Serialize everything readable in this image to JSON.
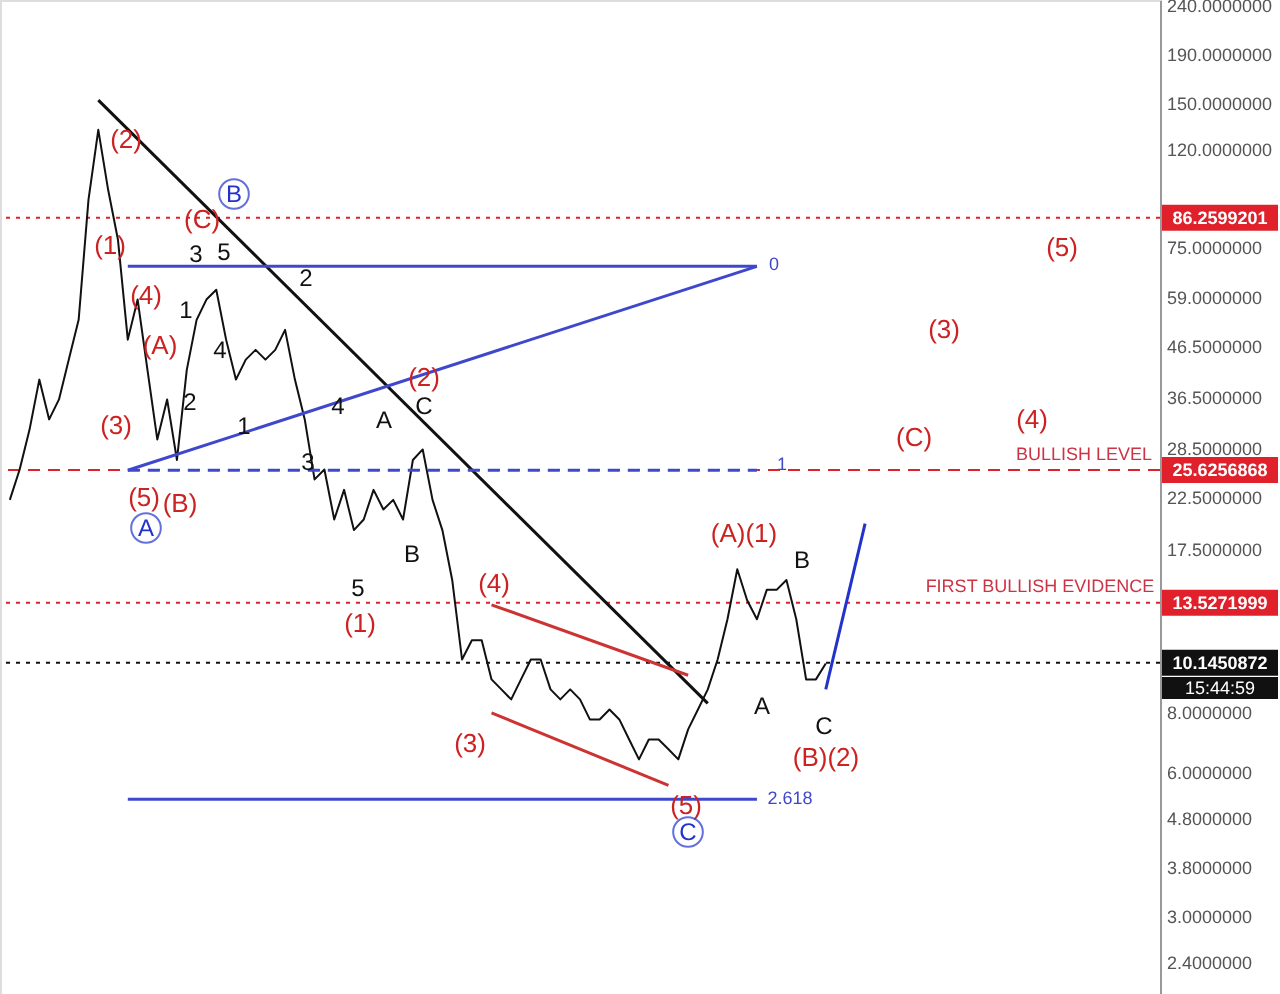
{
  "chart_data": {
    "type": "line",
    "categories": [
      null,
      null,
      null,
      null,
      null,
      null,
      null,
      null,
      null,
      null,
      null,
      null,
      null,
      null,
      null,
      null,
      null,
      null,
      null,
      null,
      null,
      null,
      null,
      null,
      null,
      null,
      null,
      null,
      null,
      null,
      null,
      null,
      null,
      null,
      null,
      null,
      null,
      null,
      null,
      null,
      null,
      null,
      null,
      null,
      null,
      null,
      null,
      null,
      null,
      null,
      null,
      null,
      null,
      null,
      null,
      null,
      null,
      null,
      null,
      null,
      null,
      null,
      null,
      null,
      null,
      null,
      null,
      null,
      null,
      null,
      null,
      null,
      null,
      null,
      null,
      null,
      null,
      null,
      null,
      null,
      null,
      null,
      null,
      null,
      null,
      null,
      null,
      null,
      null,
      null,
      null,
      null,
      null,
      null,
      null,
      null,
      null,
      null,
      null,
      null,
      null,
      null,
      null,
      null,
      null,
      null,
      null,
      null,
      null,
      null,
      null,
      null,
      null,
      null,
      null,
      null,
      null
    ],
    "series": [
      {
        "color": "#111111",
        "values": [
          22.2,
          25.7,
          31.1,
          39.6,
          32.7,
          36.0,
          43.6,
          52.8,
          94.0,
          131.7,
          98.7,
          77.6,
          48.0,
          58.2,
          41.5,
          29.7,
          36.0,
          26.9,
          41.5,
          52.8,
          58.2,
          61.0,
          48.0,
          39.6,
          43.6,
          45.7,
          43.6,
          45.7,
          50.3,
          39.6,
          32.7,
          24.5,
          25.7,
          20.2,
          23.3,
          19.2,
          20.2,
          23.3,
          21.2,
          22.2,
          20.2,
          26.9,
          28.3,
          22.2,
          19.2,
          15.1,
          10.3,
          11.3,
          11.3,
          9.36,
          8.92,
          8.5,
          9.36,
          10.3,
          10.3,
          8.92,
          8.5,
          8.92,
          8.5,
          7.72,
          7.72,
          8.1,
          7.72,
          7.01,
          6.37,
          7.01,
          7.01,
          6.69,
          6.37,
          7.36,
          8.1,
          8.92,
          10.3,
          12.5,
          15.9,
          13.7,
          12.5,
          14.4,
          14.4,
          15.1,
          12.5,
          9.36,
          9.36,
          10.1,
          null,
          null,
          null,
          null,
          null,
          null,
          null,
          null,
          null,
          null,
          null,
          null,
          null,
          null,
          null,
          null,
          null,
          null,
          null,
          null,
          null,
          null,
          null,
          null,
          null,
          null,
          null,
          null,
          null,
          null,
          null,
          null,
          null
        ]
      },
      {
        "color": "#111111",
        "values": [
          null,
          null,
          null,
          null,
          null,
          null,
          null,
          null,
          null,
          152,
          null,
          null,
          null,
          null,
          null,
          null,
          null,
          null,
          null,
          null,
          null,
          null,
          null,
          null,
          null,
          null,
          null,
          null,
          null,
          null,
          null,
          null,
          null,
          null,
          null,
          null,
          null,
          null,
          null,
          null,
          null,
          null,
          null,
          null,
          null,
          null,
          null,
          null,
          null,
          null,
          null,
          null,
          null,
          null,
          null,
          null,
          null,
          null,
          null,
          null,
          null,
          null,
          null,
          null,
          null,
          null,
          null,
          null,
          null,
          null,
          null,
          8.34,
          null,
          null,
          null,
          null,
          null,
          null,
          null,
          null,
          null,
          null,
          null,
          null,
          null,
          null,
          null,
          null,
          null,
          null,
          null,
          null,
          null,
          null,
          null,
          null,
          null,
          null,
          null,
          null,
          null,
          null,
          null,
          null,
          null,
          null,
          null,
          null,
          null,
          null,
          null,
          null,
          null,
          null,
          null,
          null,
          null
        ]
      },
      {
        "color": "#3f48cc",
        "values": [
          null,
          null,
          null,
          null,
          null,
          null,
          null,
          null,
          null,
          null,
          null,
          null,
          68.3,
          null,
          null,
          null,
          null,
          null,
          null,
          null,
          null,
          null,
          null,
          null,
          null,
          null,
          null,
          null,
          null,
          null,
          null,
          null,
          null,
          null,
          null,
          null,
          null,
          null,
          null,
          null,
          null,
          null,
          null,
          null,
          null,
          null,
          null,
          null,
          null,
          null,
          null,
          null,
          null,
          null,
          null,
          null,
          null,
          null,
          null,
          null,
          null,
          null,
          null,
          null,
          null,
          null,
          null,
          null,
          null,
          null,
          null,
          null,
          null,
          null,
          null,
          null,
          68.3,
          null,
          null,
          null,
          null,
          null,
          null,
          null,
          null,
          null,
          null,
          null,
          null,
          null,
          null,
          null,
          null,
          null,
          null,
          null,
          null,
          null,
          null,
          null,
          null,
          null,
          null,
          null,
          null,
          null,
          null,
          null,
          null,
          null,
          null,
          null,
          null,
          null,
          null,
          null,
          null
        ]
      },
      {
        "color": "#3f48cc",
        "values": [
          null,
          null,
          null,
          null,
          null,
          null,
          null,
          null,
          null,
          null,
          null,
          null,
          25.6,
          null,
          null,
          null,
          null,
          null,
          null,
          null,
          null,
          null,
          null,
          null,
          null,
          null,
          null,
          null,
          null,
          null,
          null,
          null,
          null,
          null,
          null,
          null,
          null,
          null,
          null,
          null,
          null,
          null,
          null,
          null,
          null,
          null,
          null,
          null,
          null,
          null,
          null,
          null,
          null,
          null,
          null,
          null,
          null,
          null,
          null,
          null,
          null,
          null,
          null,
          null,
          null,
          null,
          null,
          null,
          null,
          null,
          null,
          null,
          null,
          null,
          null,
          null,
          68.3,
          null,
          null,
          null,
          null,
          null,
          null,
          null,
          null,
          null,
          null,
          null,
          null,
          null,
          null,
          null,
          null,
          null,
          null,
          null,
          null,
          null,
          null,
          null,
          null,
          null,
          null,
          null,
          null,
          null,
          null,
          null,
          null,
          null,
          null,
          null,
          null,
          null,
          null,
          null,
          null
        ]
      },
      {
        "color": "#3f48cc",
        "line_style": "dashed",
        "values": [
          null,
          null,
          null,
          null,
          null,
          null,
          null,
          null,
          null,
          null,
          null,
          null,
          25.6,
          null,
          null,
          null,
          null,
          null,
          null,
          null,
          null,
          null,
          null,
          null,
          null,
          null,
          null,
          null,
          null,
          null,
          null,
          null,
          null,
          null,
          null,
          null,
          null,
          null,
          null,
          null,
          null,
          null,
          null,
          null,
          null,
          null,
          null,
          null,
          null,
          null,
          null,
          null,
          null,
          null,
          null,
          null,
          null,
          null,
          null,
          null,
          null,
          null,
          null,
          null,
          null,
          null,
          null,
          null,
          null,
          null,
          null,
          null,
          null,
          null,
          null,
          null,
          25.6,
          null,
          null,
          null,
          null,
          null,
          null,
          null,
          null,
          null,
          null,
          null,
          null,
          null,
          null,
          null,
          null,
          null,
          null,
          null,
          null,
          null,
          null,
          null,
          null,
          null,
          null,
          null,
          null,
          null,
          null,
          null,
          null,
          null,
          null,
          null,
          null,
          null,
          null,
          null,
          null
        ]
      },
      {
        "color": "#3f48cc",
        "values": [
          null,
          null,
          null,
          null,
          null,
          null,
          null,
          null,
          null,
          null,
          null,
          null,
          5.26,
          null,
          null,
          null,
          null,
          null,
          null,
          null,
          null,
          null,
          null,
          null,
          null,
          null,
          null,
          null,
          null,
          null,
          null,
          null,
          null,
          null,
          null,
          null,
          null,
          null,
          null,
          null,
          null,
          null,
          null,
          null,
          null,
          null,
          null,
          null,
          null,
          null,
          null,
          null,
          null,
          null,
          null,
          null,
          null,
          null,
          null,
          null,
          null,
          null,
          null,
          null,
          null,
          null,
          null,
          null,
          null,
          null,
          null,
          null,
          null,
          null,
          null,
          null,
          5.26,
          null,
          null,
          null,
          null,
          null,
          null,
          null,
          null,
          null,
          null,
          null,
          null,
          null,
          null,
          null,
          null,
          null,
          null,
          null,
          null,
          null,
          null,
          null,
          null,
          null,
          null,
          null,
          null,
          null,
          null,
          null,
          null,
          null,
          null,
          null,
          null,
          null,
          null,
          null,
          null
        ]
      },
      {
        "color": "#cc3333",
        "values": [
          null,
          null,
          null,
          null,
          null,
          null,
          null,
          null,
          null,
          null,
          null,
          null,
          null,
          null,
          null,
          null,
          null,
          null,
          null,
          null,
          null,
          null,
          null,
          null,
          null,
          null,
          null,
          null,
          null,
          null,
          null,
          null,
          null,
          null,
          null,
          null,
          null,
          null,
          null,
          null,
          null,
          null,
          null,
          null,
          null,
          null,
          null,
          null,
          null,
          13.4,
          null,
          null,
          null,
          null,
          null,
          null,
          null,
          null,
          null,
          null,
          null,
          null,
          null,
          null,
          null,
          null,
          null,
          null,
          null,
          9.55,
          null,
          null,
          null,
          null,
          null,
          null,
          null,
          null,
          null,
          null,
          null,
          null,
          null,
          null,
          null,
          null,
          null,
          null,
          null,
          null,
          null,
          null,
          null,
          null,
          null,
          null,
          null,
          null,
          null,
          null,
          null,
          null,
          null,
          null,
          null,
          null,
          null,
          null,
          null,
          null,
          null,
          null,
          null,
          null,
          null,
          null,
          null
        ]
      },
      {
        "color": "#cc3333",
        "values": [
          null,
          null,
          null,
          null,
          null,
          null,
          null,
          null,
          null,
          null,
          null,
          null,
          null,
          null,
          null,
          null,
          null,
          null,
          null,
          null,
          null,
          null,
          null,
          null,
          null,
          null,
          null,
          null,
          null,
          null,
          null,
          null,
          null,
          null,
          null,
          null,
          null,
          null,
          null,
          null,
          null,
          null,
          null,
          null,
          null,
          null,
          null,
          null,
          null,
          7.97,
          null,
          null,
          null,
          null,
          null,
          null,
          null,
          null,
          null,
          null,
          null,
          null,
          null,
          null,
          null,
          null,
          null,
          5.62,
          null,
          null,
          null,
          null,
          null,
          null,
          null,
          null,
          null,
          null,
          null,
          null,
          null,
          null,
          null,
          null,
          null,
          null,
          null,
          null,
          null,
          null,
          null,
          null,
          null,
          null,
          null,
          null,
          null,
          null,
          null,
          null,
          null,
          null,
          null,
          null,
          null,
          null,
          null,
          null,
          null,
          null,
          null,
          null,
          null,
          null,
          null,
          null,
          null
        ]
      },
      {
        "color": "#2233cc",
        "values": [
          null,
          null,
          null,
          null,
          null,
          null,
          null,
          null,
          null,
          null,
          null,
          null,
          null,
          null,
          null,
          null,
          null,
          null,
          null,
          null,
          null,
          null,
          null,
          null,
          null,
          null,
          null,
          null,
          null,
          null,
          null,
          null,
          null,
          null,
          null,
          null,
          null,
          null,
          null,
          null,
          null,
          null,
          null,
          null,
          null,
          null,
          null,
          null,
          null,
          null,
          null,
          null,
          null,
          null,
          null,
          null,
          null,
          null,
          null,
          null,
          null,
          null,
          null,
          null,
          null,
          null,
          null,
          null,
          null,
          null,
          null,
          null,
          null,
          null,
          null,
          null,
          null,
          null,
          null,
          null,
          null,
          null,
          null,
          8.92,
          null,
          null,
          null,
          19.8,
          null,
          null,
          null,
          null,
          null,
          null,
          null,
          null,
          null,
          null,
          null,
          null,
          null,
          null,
          null,
          null,
          null,
          null,
          null,
          null,
          null,
          null,
          null,
          null,
          null,
          null,
          null,
          null,
          null
        ]
      }
    ],
    "log": "y",
    "ylim": [
      2.06,
      246
    ],
    "yticks": [
      {
        "value": 2.4,
        "label": "2.4000000"
      },
      {
        "value": 3,
        "label": "3.0000000"
      },
      {
        "value": 3.8,
        "label": "3.8000000"
      },
      {
        "value": 4.8,
        "label": "4.8000000"
      },
      {
        "value": 6,
        "label": "6.0000000"
      },
      {
        "value": 8,
        "label": "8.0000000"
      },
      {
        "value": 17.5,
        "label": "17.5000000"
      },
      {
        "value": 22.5,
        "label": "22.5000000"
      },
      {
        "value": 28.5,
        "label": "28.5000000"
      },
      {
        "value": 36.5,
        "label": "36.5000000"
      },
      {
        "value": 46.5,
        "label": "46.5000000"
      },
      {
        "value": 59,
        "label": "59.0000000"
      },
      {
        "value": 75,
        "label": "75.0000000"
      },
      {
        "value": 120,
        "label": "120.0000000"
      },
      {
        "value": 150,
        "label": "150.0000000"
      },
      {
        "value": 190,
        "label": "190.0000000"
      },
      {
        "value": 240,
        "label": "240.0000000"
      }
    ],
    "tick_labels": "y",
    "grid": false,
    "marker": "none",
    "line_style": "solid",
    "ref_lines": [
      {
        "axis": "y",
        "value": 86.2599201,
        "label": "86.2599201",
        "color": "#e0202a",
        "line_style": "dotted"
      },
      {
        "axis": "y",
        "value": 25.6256868,
        "label": "25.6256868",
        "color": "#e0202a",
        "line_style": "dashed"
      },
      {
        "axis": "y",
        "value": 13.5271999,
        "label": "13.5271999",
        "color": "#e0202a",
        "line_style": "dotted"
      },
      {
        "axis": "y",
        "value": 10.1450872,
        "label": "10.1450872",
        "color": "#111111",
        "line_style": "dotted"
      }
    ],
    "annotations": [
      "(2)",
      "(1)",
      "(4)",
      "(A)",
      "(3)",
      "(5)",
      "(B)",
      "A",
      "B",
      "(C)",
      "5",
      "3",
      "2",
      "1",
      "4",
      "2",
      "1",
      "4",
      "A",
      "C",
      "(2)",
      "3",
      "5",
      "B",
      "(1)",
      "(4)",
      "(3)",
      "(5)",
      "C",
      "(A)(1)",
      "B",
      "A",
      "C",
      "(B)(2)",
      "(C)",
      "(4)",
      "(3)",
      "(5)",
      "0",
      "1",
      "2.618",
      "BULLISH LEVEL",
      "FIRST BULLISH EVIDENCE",
      "15:44:59"
    ]
  }
}
